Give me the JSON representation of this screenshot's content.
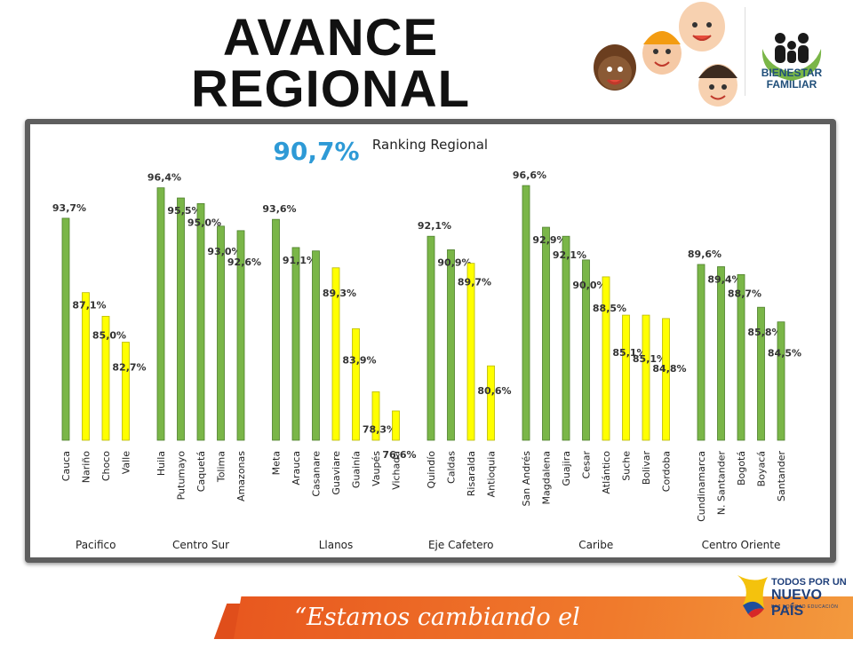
{
  "page": {
    "title_line1": "AVANCE",
    "title_line2": "REGIONAL",
    "logo_text_line1": "BIENESTAR",
    "logo_text_line2": "FAMILIAR",
    "slogan": "“Estamos cambiando el mundo”",
    "gov_logo_line1": "TODOS POR UN",
    "gov_logo_line2": "NUEVO PAÍS",
    "gov_logo_sub": "PAZ  EQUIDAD  EDUCACIÓN"
  },
  "colors": {
    "green": "#7ab648",
    "yellow": "#ffff00",
    "highlight": "#2e9ad6",
    "panel": "#5e5e5e",
    "footer": "#e8581f"
  },
  "chart_data": {
    "type": "bar",
    "title": "Ranking Regional",
    "overall_value_label": "90,7%",
    "xlabel": "",
    "ylabel": "",
    "ylim": [
      0,
      100
    ],
    "grid": false,
    "groups": [
      {
        "name": "Pacifico",
        "items": [
          {
            "category": "Cauca",
            "value": 93.7,
            "label": "93,7%",
            "color": "green"
          },
          {
            "category": "Nariño",
            "value": 87.1,
            "label": "87,1%",
            "color": "yellow"
          },
          {
            "category": "Choco",
            "value": 85.0,
            "label": "85,0%",
            "color": "yellow"
          },
          {
            "category": "Valle",
            "value": 82.7,
            "label": "82,7%",
            "color": "yellow"
          }
        ]
      },
      {
        "name": "Centro Sur",
        "items": [
          {
            "category": "Huila",
            "value": 96.4,
            "label": "96,4%",
            "color": "green"
          },
          {
            "category": "Putumayo",
            "value": 95.5,
            "label": "95,5%",
            "color": "green"
          },
          {
            "category": "Caquetá",
            "value": 95.0,
            "label": "95,0%",
            "color": "green"
          },
          {
            "category": "Tolima",
            "value": 93.0,
            "label": "93,0%",
            "color": "green"
          },
          {
            "category": "Amazonas",
            "value": 92.6,
            "label": "92,6%",
            "color": "green"
          }
        ]
      },
      {
        "name": "Llanos",
        "items": [
          {
            "category": "Meta",
            "value": 93.6,
            "label": "93,6%",
            "color": "green"
          },
          {
            "category": "Arauca",
            "value": 91.1,
            "label": "91,1%",
            "color": "green"
          },
          {
            "category": "Casanare",
            "value": 90.8,
            "label": "",
            "color": "green"
          },
          {
            "category": "Guaviare",
            "value": 89.3,
            "label": "89,3%",
            "color": "yellow"
          },
          {
            "category": "Guainía",
            "value": 83.9,
            "label": "83,9%",
            "color": "yellow"
          },
          {
            "category": "Vaupés",
            "value": 78.3,
            "label": "78,3%",
            "color": "yellow"
          },
          {
            "category": "Vichada",
            "value": 76.6,
            "label": "76,6%",
            "color": "yellow"
          }
        ]
      },
      {
        "name": "Eje Cafetero",
        "items": [
          {
            "category": "Quindío",
            "value": 92.1,
            "label": "92,1%",
            "color": "green"
          },
          {
            "category": "Caldas",
            "value": 90.9,
            "label": "90,9%",
            "color": "green"
          },
          {
            "category": "Risaralda",
            "value": 89.7,
            "label": "89,7%",
            "color": "yellow"
          },
          {
            "category": "Antioquia",
            "value": 80.6,
            "label": "80,6%",
            "color": "yellow"
          }
        ]
      },
      {
        "name": "Caribe",
        "items": [
          {
            "category": "San Andrés",
            "value": 96.6,
            "label": "96,6%",
            "color": "green"
          },
          {
            "category": "Magdalena",
            "value": 92.9,
            "label": "92,9%",
            "color": "green"
          },
          {
            "category": "Guajira",
            "value": 92.1,
            "label": "92,1%",
            "color": "green"
          },
          {
            "category": "Cesar",
            "value": 90.0,
            "label": "90,0%",
            "color": "green"
          },
          {
            "category": "Atlántico",
            "value": 88.5,
            "label": "88,5%",
            "color": "yellow"
          },
          {
            "category": "Suche",
            "value": 85.1,
            "label": "85,1%",
            "color": "yellow"
          },
          {
            "category": "Bolivar",
            "value": 85.1,
            "label": "85,1%",
            "color": "yellow"
          },
          {
            "category": "Cordoba",
            "value": 84.8,
            "label": "84,8%",
            "color": "yellow"
          }
        ]
      },
      {
        "name": "Centro Oriente",
        "items": [
          {
            "category": "Cundinamarca",
            "value": 89.6,
            "label": "89,6%",
            "color": "green"
          },
          {
            "category": "N. Santander",
            "value": 89.4,
            "label": "89,4%",
            "color": "green"
          },
          {
            "category": "Bogotá",
            "value": 88.7,
            "label": "88,7%",
            "color": "green"
          },
          {
            "category": "Boyacá",
            "value": 85.8,
            "label": "85,8%",
            "color": "green"
          },
          {
            "category": "Santander",
            "value": 84.5,
            "label": "84,5%",
            "color": "green"
          }
        ]
      }
    ]
  }
}
